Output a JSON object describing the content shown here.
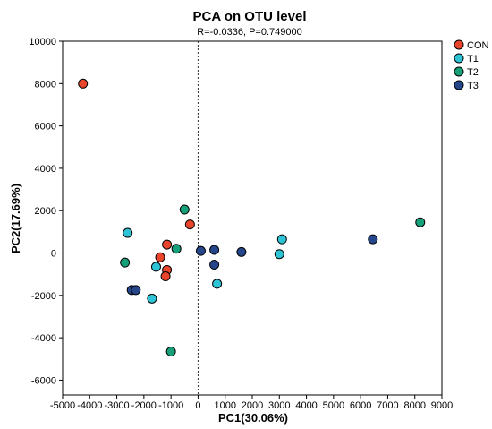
{
  "chart_data": {
    "type": "scatter",
    "title": "PCA on OTU level",
    "subtitle": "R=-0.0336, P=0.749000",
    "xlabel": "PC1(30.06%)",
    "ylabel": "PC2(17.69%)",
    "xlim": [
      -5000,
      9000
    ],
    "ylim": [
      -6700,
      10000
    ],
    "xticks": [
      -5000,
      -4000,
      -3000,
      -2000,
      -1000,
      0,
      1000,
      2000,
      3000,
      4000,
      5000,
      6000,
      7000,
      8000,
      9000
    ],
    "yticks": [
      -6000,
      -4000,
      -2000,
      0,
      2000,
      4000,
      6000,
      8000,
      10000
    ],
    "grid": false,
    "reference_lines": {
      "x": 0,
      "y": 0,
      "style": "dotted"
    },
    "legend_position": "right-top",
    "series": [
      {
        "name": "CON",
        "color": "#e8452c",
        "points": [
          [
            -4250,
            8000
          ],
          [
            -300,
            1350
          ],
          [
            -1150,
            400
          ],
          [
            -1400,
            -200
          ],
          [
            -1150,
            -800
          ],
          [
            -1200,
            -1100
          ]
        ]
      },
      {
        "name": "T1",
        "color": "#2ec4d6",
        "points": [
          [
            -2600,
            950
          ],
          [
            -1550,
            -650
          ],
          [
            -1700,
            -2150
          ],
          [
            700,
            -1450
          ],
          [
            3100,
            650
          ],
          [
            3000,
            -50
          ]
        ]
      },
      {
        "name": "T2",
        "color": "#16a07a",
        "points": [
          [
            -500,
            2050
          ],
          [
            -800,
            200
          ],
          [
            -2700,
            -450
          ],
          [
            -1000,
            -4650
          ],
          [
            8200,
            1450
          ]
        ]
      },
      {
        "name": "T3",
        "color": "#25468a",
        "points": [
          [
            -2450,
            -1750
          ],
          [
            -2300,
            -1750
          ],
          [
            100,
            100
          ],
          [
            600,
            150
          ],
          [
            600,
            -550
          ],
          [
            1600,
            50
          ],
          [
            6450,
            650
          ]
        ]
      }
    ]
  }
}
